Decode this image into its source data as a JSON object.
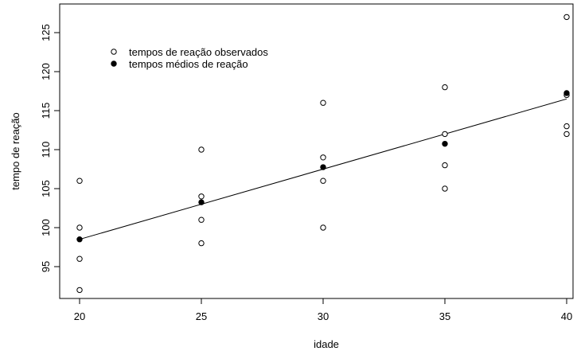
{
  "chart_data": {
    "type": "scatter",
    "xlabel": "idade",
    "ylabel": "tempo de reação",
    "xlim": [
      20,
      40
    ],
    "ylim": [
      91,
      128
    ],
    "xticks": [
      20,
      25,
      30,
      35,
      40
    ],
    "yticks": [
      95,
      100,
      105,
      110,
      115,
      120,
      125
    ],
    "grid": false,
    "legend_position": "top-left",
    "series": [
      {
        "name": "tempos de reação observados",
        "marker": "open-circle",
        "points": [
          [
            20,
            106
          ],
          [
            20,
            100
          ],
          [
            20,
            96
          ],
          [
            20,
            92
          ],
          [
            25,
            110
          ],
          [
            25,
            104
          ],
          [
            25,
            101
          ],
          [
            25,
            98
          ],
          [
            30,
            116
          ],
          [
            30,
            109
          ],
          [
            30,
            106
          ],
          [
            30,
            100
          ],
          [
            35,
            118
          ],
          [
            35,
            112
          ],
          [
            35,
            108
          ],
          [
            35,
            105
          ],
          [
            40,
            127
          ],
          [
            40,
            117
          ],
          [
            40,
            113
          ],
          [
            40,
            112
          ]
        ]
      },
      {
        "name": "tempos médios de reação",
        "marker": "filled-circle",
        "points": [
          [
            20,
            98.5
          ],
          [
            25,
            103.25
          ],
          [
            30,
            107.75
          ],
          [
            35,
            110.75
          ],
          [
            40,
            117.25
          ]
        ]
      }
    ],
    "fit_line": {
      "from": [
        20,
        98.5
      ],
      "to": [
        40,
        116.5
      ]
    }
  }
}
